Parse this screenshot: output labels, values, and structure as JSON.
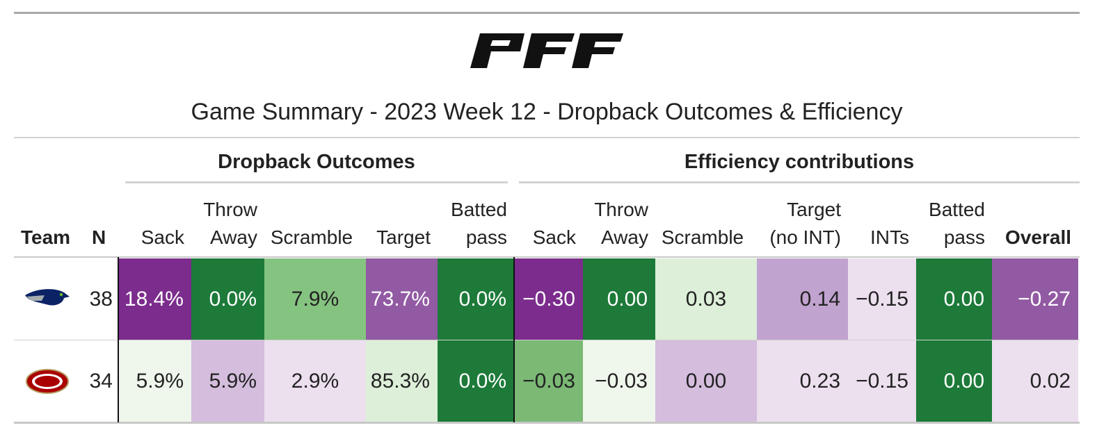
{
  "logo": {
    "text": "PFF"
  },
  "title": "Game Summary - 2023 Week 12 - Dropback Outcomes & Efficiency",
  "spanners": {
    "outcomes": "Dropback Outcomes",
    "efficiency": "Efficiency contributions"
  },
  "columns": {
    "team": "Team",
    "n": "N",
    "outcomes": [
      {
        "lines": [
          "Sack"
        ]
      },
      {
        "lines": [
          "Throw",
          "Away"
        ]
      },
      {
        "lines": [
          "Scramble"
        ]
      },
      {
        "lines": [
          "Target"
        ]
      },
      {
        "lines": [
          "Batted",
          "pass"
        ]
      }
    ],
    "efficiency": [
      {
        "lines": [
          "Sack"
        ]
      },
      {
        "lines": [
          "Throw",
          "Away"
        ]
      },
      {
        "lines": [
          "Scramble"
        ]
      },
      {
        "lines": [
          "Target",
          "(no INT)"
        ]
      },
      {
        "lines": [
          "INTs"
        ]
      },
      {
        "lines": [
          "Batted",
          "pass"
        ]
      },
      {
        "lines": [
          "Overall"
        ]
      }
    ]
  },
  "colors": {
    "purple_dark": "#7b2c8c",
    "purple_mid": "#915aa3",
    "purple_light": "#c1a3cf",
    "purple_pale": "#d4bddd",
    "purple_faint": "#ecdfee",
    "green_dark": "#1d7a39",
    "green_mid": "#85c380",
    "green_light": "#ddefd8",
    "green_faint": "#eff6ec"
  },
  "chart_data": {
    "type": "table",
    "rows": [
      {
        "team": "SEA",
        "logo_icon": "seahawks-logo-icon",
        "n": "38",
        "outcomes": [
          {
            "label": "18.4%",
            "value": 18.4,
            "bg": "#7b2c8c",
            "fg": "#ffffff"
          },
          {
            "label": "0.0%",
            "value": 0.0,
            "bg": "#1d7a39",
            "fg": "#ffffff"
          },
          {
            "label": "7.9%",
            "value": 7.9,
            "bg": "#85c380",
            "fg": "#222222"
          },
          {
            "label": "73.7%",
            "value": 73.7,
            "bg": "#915aa3",
            "fg": "#ffffff"
          },
          {
            "label": "0.0%",
            "value": 0.0,
            "bg": "#1d7a39",
            "fg": "#ffffff"
          }
        ],
        "efficiency": [
          {
            "label": "−0.30",
            "value": -0.3,
            "bg": "#7b2c8c",
            "fg": "#ffffff"
          },
          {
            "label": "0.00",
            "value": 0.0,
            "bg": "#1d7a39",
            "fg": "#ffffff"
          },
          {
            "label": "0.03",
            "value": 0.03,
            "bg": "#ddefd8",
            "fg": "#222222"
          },
          {
            "label": "0.14",
            "value": 0.14,
            "bg": "#c1a3cf",
            "fg": "#222222"
          },
          {
            "label": "−0.15",
            "value": -0.15,
            "bg": "#ecdfee",
            "fg": "#222222"
          },
          {
            "label": "0.00",
            "value": 0.0,
            "bg": "#1d7a39",
            "fg": "#ffffff"
          },
          {
            "label": "−0.27",
            "value": -0.27,
            "bg": "#915aa3",
            "fg": "#ffffff"
          }
        ]
      },
      {
        "team": "SF",
        "logo_icon": "49ers-logo-icon",
        "n": "34",
        "outcomes": [
          {
            "label": "5.9%",
            "value": 5.9,
            "bg": "#eff6ec",
            "fg": "#222222"
          },
          {
            "label": "5.9%",
            "value": 5.9,
            "bg": "#d4bddd",
            "fg": "#222222"
          },
          {
            "label": "2.9%",
            "value": 2.9,
            "bg": "#ecdfee",
            "fg": "#222222"
          },
          {
            "label": "85.3%",
            "value": 85.3,
            "bg": "#ddefd8",
            "fg": "#222222"
          },
          {
            "label": "0.0%",
            "value": 0.0,
            "bg": "#1d7a39",
            "fg": "#ffffff"
          }
        ],
        "efficiency": [
          {
            "label": "−0.03",
            "value": -0.03,
            "bg": "#7bb975",
            "fg": "#222222"
          },
          {
            "label": "−0.03",
            "value": -0.03,
            "bg": "#eff6ec",
            "fg": "#222222"
          },
          {
            "label": "0.00",
            "value": 0.0,
            "bg": "#d4bddd",
            "fg": "#222222"
          },
          {
            "label": "0.23",
            "value": 0.23,
            "bg": "#ecdfee",
            "fg": "#222222"
          },
          {
            "label": "−0.15",
            "value": -0.15,
            "bg": "#ecdfee",
            "fg": "#222222"
          },
          {
            "label": "0.00",
            "value": 0.0,
            "bg": "#1d7a39",
            "fg": "#ffffff"
          },
          {
            "label": "0.02",
            "value": 0.02,
            "bg": "#ecdfee",
            "fg": "#222222"
          }
        ]
      }
    ]
  }
}
